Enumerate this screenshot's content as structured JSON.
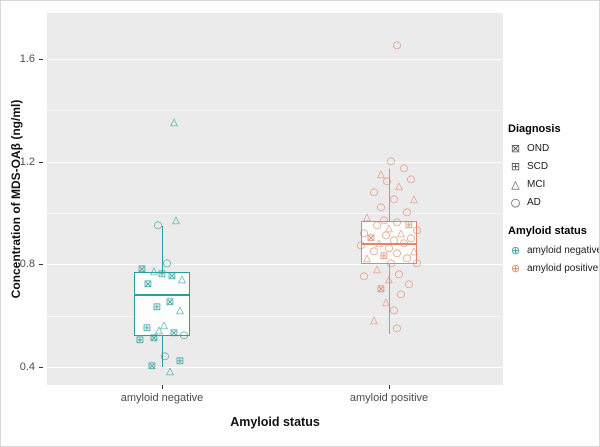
{
  "figure": {
    "y_axis_label": "Concentration of MDS-OAβ (ng/ml)",
    "x_axis_label": "Amyloid status",
    "y_tick_labels": [
      "0.4",
      "0.8",
      "1.2",
      "1.6"
    ],
    "x_categories": [
      "amyloid negative",
      "amyloid positive"
    ]
  },
  "legend": {
    "diagnosis_title": "Diagnosis",
    "diagnosis_items": [
      {
        "label": "OND",
        "shape": "square-x"
      },
      {
        "label": "SCD",
        "shape": "square-plus"
      },
      {
        "label": "MCI",
        "shape": "triangle"
      },
      {
        "label": "AD",
        "shape": "circle"
      }
    ],
    "status_title": "Amyloid status",
    "status_items": [
      {
        "label": "amyloid negative",
        "color": "#2a9d9d"
      },
      {
        "label": "amyloid positive",
        "color": "#e0876a"
      }
    ]
  },
  "chart_data": {
    "type": "boxplot-jitter",
    "title": "",
    "xlabel": "Amyloid status",
    "ylabel": "Concentration of MDS-OAβ (ng/ml)",
    "ylim": [
      0.33,
      1.78
    ],
    "grid": {
      "major": [
        0.4,
        0.8,
        1.2,
        1.6
      ],
      "minor": [
        0.6,
        1.0,
        1.4
      ]
    },
    "legend_position": "right",
    "shape_legend": {
      "OND": "square-x",
      "SCD": "square-plus",
      "MCI": "triangle",
      "AD": "circle"
    },
    "groups": [
      {
        "name": "amyloid negative",
        "color": "#2a9d9d",
        "box": {
          "q1": 0.52,
          "median": 0.68,
          "q3": 0.77,
          "whisker_low": 0.4,
          "whisker_high": 0.95
        },
        "points": [
          {
            "v": 1.35,
            "shape": "triangle",
            "dx": 12
          },
          {
            "v": 0.97,
            "shape": "triangle",
            "dx": 14
          },
          {
            "v": 0.95,
            "shape": "circle",
            "dx": -4
          },
          {
            "v": 0.8,
            "shape": "circle",
            "dx": 5
          },
          {
            "v": 0.78,
            "shape": "square-x",
            "dx": -20
          },
          {
            "v": 0.77,
            "shape": "triangle",
            "dx": -8
          },
          {
            "v": 0.76,
            "shape": "square-plus",
            "dx": 0
          },
          {
            "v": 0.75,
            "shape": "square-x",
            "dx": 10
          },
          {
            "v": 0.74,
            "shape": "triangle",
            "dx": 20
          },
          {
            "v": 0.72,
            "shape": "square-x",
            "dx": -14
          },
          {
            "v": 0.65,
            "shape": "square-x",
            "dx": 8
          },
          {
            "v": 0.63,
            "shape": "square-plus",
            "dx": -5
          },
          {
            "v": 0.62,
            "shape": "triangle",
            "dx": 18
          },
          {
            "v": 0.56,
            "shape": "triangle",
            "dx": 2
          },
          {
            "v": 0.55,
            "shape": "square-plus",
            "dx": -15
          },
          {
            "v": 0.54,
            "shape": "triangle",
            "dx": -3
          },
          {
            "v": 0.53,
            "shape": "square-x",
            "dx": 12
          },
          {
            "v": 0.52,
            "shape": "circle",
            "dx": 22
          },
          {
            "v": 0.51,
            "shape": "square-x",
            "dx": -8
          },
          {
            "v": 0.5,
            "shape": "square-plus",
            "dx": -22
          },
          {
            "v": 0.44,
            "shape": "circle",
            "dx": 3
          },
          {
            "v": 0.42,
            "shape": "square-plus",
            "dx": 18
          },
          {
            "v": 0.4,
            "shape": "square-x",
            "dx": -10
          },
          {
            "v": 0.38,
            "shape": "triangle",
            "dx": 8
          }
        ]
      },
      {
        "name": "amyloid positive",
        "color": "#e0876a",
        "box": {
          "q1": 0.8,
          "median": 0.88,
          "q3": 0.97,
          "whisker_low": 0.53,
          "whisker_high": 1.17
        },
        "points": [
          {
            "v": 1.65,
            "shape": "circle",
            "dx": 8
          },
          {
            "v": 1.2,
            "shape": "circle",
            "dx": 2
          },
          {
            "v": 1.17,
            "shape": "circle",
            "dx": 15
          },
          {
            "v": 1.15,
            "shape": "triangle",
            "dx": -8
          },
          {
            "v": 1.13,
            "shape": "circle",
            "dx": 22
          },
          {
            "v": 1.12,
            "shape": "circle",
            "dx": -2
          },
          {
            "v": 1.1,
            "shape": "triangle",
            "dx": 10
          },
          {
            "v": 1.08,
            "shape": "circle",
            "dx": -15
          },
          {
            "v": 1.05,
            "shape": "circle",
            "dx": 5
          },
          {
            "v": 1.05,
            "shape": "triangle",
            "dx": 25
          },
          {
            "v": 1.02,
            "shape": "circle",
            "dx": -8
          },
          {
            "v": 1.0,
            "shape": "circle",
            "dx": 18
          },
          {
            "v": 0.98,
            "shape": "triangle",
            "dx": -22
          },
          {
            "v": 0.97,
            "shape": "circle",
            "dx": -5
          },
          {
            "v": 0.96,
            "shape": "circle",
            "dx": 8
          },
          {
            "v": 0.95,
            "shape": "square-plus",
            "dx": 20
          },
          {
            "v": 0.95,
            "shape": "circle",
            "dx": -12
          },
          {
            "v": 0.94,
            "shape": "triangle",
            "dx": 0
          },
          {
            "v": 0.93,
            "shape": "circle",
            "dx": 28
          },
          {
            "v": 0.92,
            "shape": "circle",
            "dx": -25
          },
          {
            "v": 0.92,
            "shape": "triangle",
            "dx": 12
          },
          {
            "v": 0.91,
            "shape": "circle",
            "dx": -3
          },
          {
            "v": 0.9,
            "shape": "circle",
            "dx": 22
          },
          {
            "v": 0.9,
            "shape": "square-x",
            "dx": -18
          },
          {
            "v": 0.89,
            "shape": "circle",
            "dx": 5
          },
          {
            "v": 0.88,
            "shape": "triangle",
            "dx": -10
          },
          {
            "v": 0.88,
            "shape": "circle",
            "dx": 15
          },
          {
            "v": 0.87,
            "shape": "circle",
            "dx": -28
          },
          {
            "v": 0.86,
            "shape": "circle",
            "dx": 0
          },
          {
            "v": 0.85,
            "shape": "triangle",
            "dx": 25
          },
          {
            "v": 0.85,
            "shape": "circle",
            "dx": -15
          },
          {
            "v": 0.84,
            "shape": "circle",
            "dx": 8
          },
          {
            "v": 0.83,
            "shape": "square-plus",
            "dx": -5
          },
          {
            "v": 0.82,
            "shape": "circle",
            "dx": 18
          },
          {
            "v": 0.82,
            "shape": "triangle",
            "dx": -22
          },
          {
            "v": 0.8,
            "shape": "circle",
            "dx": 2
          },
          {
            "v": 0.8,
            "shape": "circle",
            "dx": 28
          },
          {
            "v": 0.78,
            "shape": "triangle",
            "dx": -12
          },
          {
            "v": 0.76,
            "shape": "circle",
            "dx": 10
          },
          {
            "v": 0.75,
            "shape": "circle",
            "dx": -25
          },
          {
            "v": 0.74,
            "shape": "triangle",
            "dx": 0
          },
          {
            "v": 0.72,
            "shape": "circle",
            "dx": 20
          },
          {
            "v": 0.7,
            "shape": "square-x",
            "dx": -8
          },
          {
            "v": 0.68,
            "shape": "circle",
            "dx": 12
          },
          {
            "v": 0.65,
            "shape": "triangle",
            "dx": -3
          },
          {
            "v": 0.62,
            "shape": "circle",
            "dx": 5
          },
          {
            "v": 0.58,
            "shape": "triangle",
            "dx": -15
          },
          {
            "v": 0.55,
            "shape": "circle",
            "dx": 8
          }
        ]
      }
    ]
  }
}
